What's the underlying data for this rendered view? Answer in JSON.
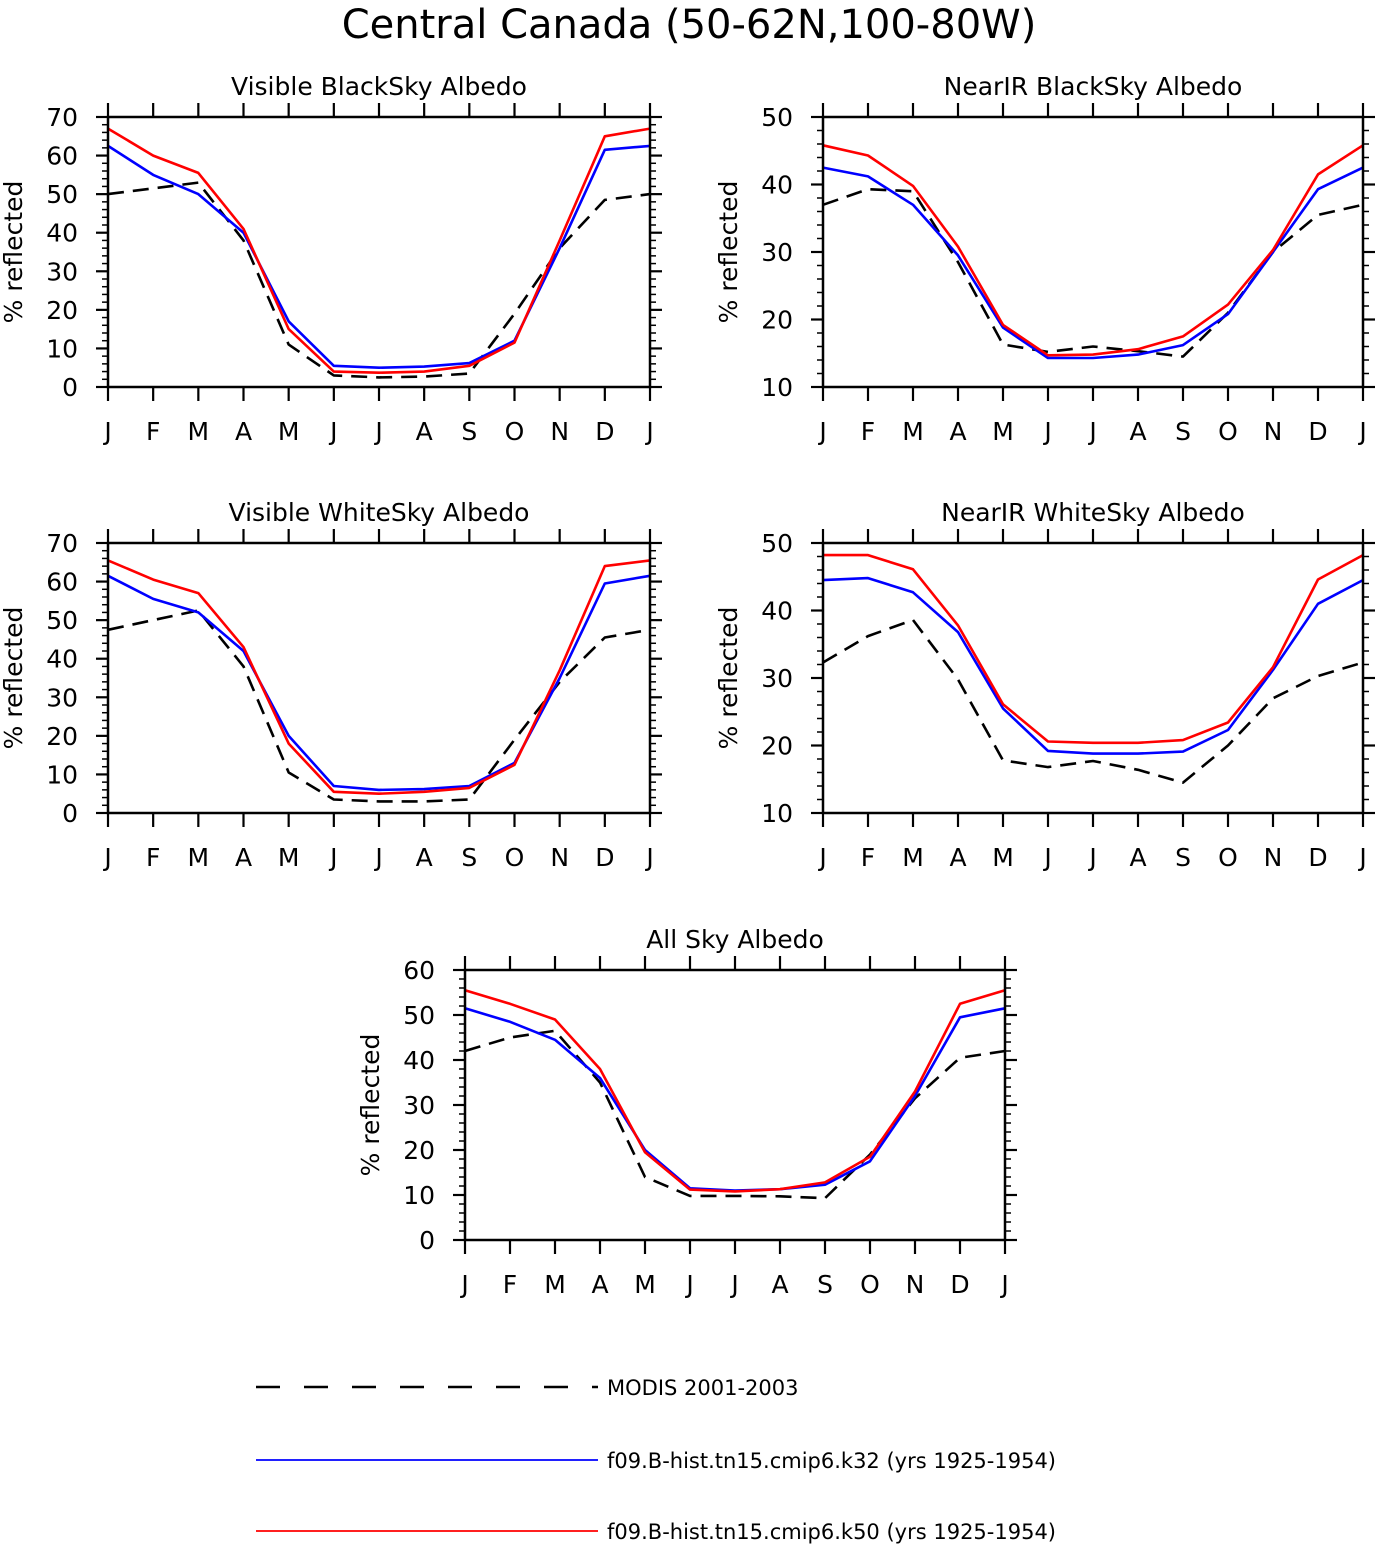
{
  "title": "Central Canada (50-62N,100-80W)",
  "ylabel": "% reflected",
  "months": [
    "J",
    "F",
    "M",
    "A",
    "M",
    "J",
    "J",
    "A",
    "S",
    "O",
    "N",
    "D",
    "J"
  ],
  "colors": {
    "modis": "#000000",
    "k32": "#0000ff",
    "k50": "#ff0000"
  },
  "legend": [
    {
      "label": "MODIS 2001-2003",
      "color": "#000000",
      "dash": true
    },
    {
      "label": "f09.B-hist.tn15.cmip6.k32 (yrs 1925-1954)",
      "color": "#0000ff",
      "dash": false
    },
    {
      "label": "f09.B-hist.tn15.cmip6.k50 (yrs 1925-1954)",
      "color": "#ff0000",
      "dash": false
    }
  ],
  "chart_data": [
    {
      "type": "line",
      "title": "Visible BlackSky Albedo",
      "ylabel": "% reflected",
      "categories": [
        "J",
        "F",
        "M",
        "A",
        "M",
        "J",
        "J",
        "A",
        "S",
        "O",
        "N",
        "D",
        "J"
      ],
      "ylim": [
        0,
        70
      ],
      "yticks": [
        0,
        10,
        20,
        30,
        40,
        50,
        60,
        70
      ],
      "series": [
        {
          "name": "MODIS 2001-2003",
          "values": [
            50,
            51.5,
            53,
            38,
            11,
            3,
            2.5,
            2.7,
            3.5,
            19,
            36,
            48.5,
            50
          ]
        },
        {
          "name": "f09.B-hist.tn15.cmip6.k32 (yrs 1925-1954)",
          "values": [
            62.5,
            55,
            50,
            40,
            17,
            5.5,
            5,
            5.3,
            6.2,
            12,
            36,
            61.5,
            62.5
          ]
        },
        {
          "name": "f09.B-hist.tn15.cmip6.k50 (yrs 1925-1954)",
          "values": [
            67,
            60,
            55.5,
            41,
            15,
            4,
            3.7,
            4,
            5.5,
            11.5,
            38,
            65,
            67
          ]
        }
      ]
    },
    {
      "type": "line",
      "title": "NearIR BlackSky Albedo",
      "ylabel": "% reflected",
      "categories": [
        "J",
        "F",
        "M",
        "A",
        "M",
        "J",
        "J",
        "A",
        "S",
        "O",
        "N",
        "D",
        "J"
      ],
      "ylim": [
        10,
        50
      ],
      "yticks": [
        10,
        20,
        30,
        40,
        50
      ],
      "series": [
        {
          "name": "MODIS 2001-2003",
          "values": [
            37,
            39.3,
            39,
            28.5,
            16.3,
            15.2,
            16,
            15.3,
            14.5,
            21,
            30,
            35.5,
            37
          ]
        },
        {
          "name": "f09.B-hist.tn15.cmip6.k32 (yrs 1925-1954)",
          "values": [
            42.5,
            41.2,
            37,
            29.5,
            18.8,
            14.3,
            14.3,
            14.8,
            16.2,
            20.8,
            30,
            39.3,
            42.5
          ]
        },
        {
          "name": "f09.B-hist.tn15.cmip6.k50 (yrs 1925-1954)",
          "values": [
            45.8,
            44.3,
            39.8,
            30.8,
            19.2,
            14.7,
            14.8,
            15.6,
            17.5,
            22.2,
            30.3,
            41.5,
            45.8
          ]
        }
      ]
    },
    {
      "type": "line",
      "title": "Visible WhiteSky Albedo",
      "ylabel": "% reflected",
      "categories": [
        "J",
        "F",
        "M",
        "A",
        "M",
        "J",
        "J",
        "A",
        "S",
        "O",
        "N",
        "D",
        "J"
      ],
      "ylim": [
        0,
        70
      ],
      "yticks": [
        0,
        10,
        20,
        30,
        40,
        50,
        60,
        70
      ],
      "series": [
        {
          "name": "MODIS 2001-2003",
          "values": [
            47.5,
            50,
            52.5,
            38,
            10.5,
            3.5,
            3,
            3,
            3.5,
            19,
            34,
            45.5,
            47.5
          ]
        },
        {
          "name": "f09.B-hist.tn15.cmip6.k32 (yrs 1925-1954)",
          "values": [
            61.5,
            55.5,
            52,
            42,
            20,
            7,
            6,
            6.2,
            7,
            13,
            35,
            59.5,
            61.5
          ]
        },
        {
          "name": "f09.B-hist.tn15.cmip6.k50 (yrs 1925-1954)",
          "values": [
            65.5,
            60.5,
            57,
            43,
            18,
            5.5,
            5,
            5.5,
            6.5,
            12.5,
            37,
            64,
            65.5
          ]
        }
      ]
    },
    {
      "type": "line",
      "title": "NearIR WhiteSky Albedo",
      "ylabel": "% reflected",
      "categories": [
        "J",
        "F",
        "M",
        "A",
        "M",
        "J",
        "J",
        "A",
        "S",
        "O",
        "N",
        "D",
        "J"
      ],
      "ylim": [
        10,
        50
      ],
      "yticks": [
        10,
        20,
        30,
        40,
        50
      ],
      "series": [
        {
          "name": "MODIS 2001-2003",
          "values": [
            32.3,
            36.2,
            38.6,
            29.8,
            17.8,
            16.8,
            17.7,
            16.4,
            14.5,
            20,
            27,
            30.3,
            32.3
          ]
        },
        {
          "name": "f09.B-hist.tn15.cmip6.k32 (yrs 1925-1954)",
          "values": [
            44.5,
            44.8,
            42.7,
            36.8,
            25.5,
            19.2,
            18.8,
            18.8,
            19.1,
            22.3,
            31.2,
            41,
            44.5
          ]
        },
        {
          "name": "f09.B-hist.tn15.cmip6.k50 (yrs 1925-1954)",
          "values": [
            48.2,
            48.2,
            46.1,
            37.8,
            26.1,
            20.6,
            20.4,
            20.4,
            20.8,
            23.4,
            31.6,
            44.6,
            48.2
          ]
        }
      ]
    },
    {
      "type": "line",
      "title": "All Sky Albedo",
      "ylabel": "% reflected",
      "categories": [
        "J",
        "F",
        "M",
        "A",
        "M",
        "J",
        "J",
        "A",
        "S",
        "O",
        "N",
        "D",
        "J"
      ],
      "ylim": [
        0,
        60
      ],
      "yticks": [
        0,
        10,
        20,
        30,
        40,
        50,
        60
      ],
      "series": [
        {
          "name": "MODIS 2001-2003",
          "values": [
            42,
            45,
            46.5,
            35,
            14,
            9.8,
            9.8,
            9.7,
            9.3,
            19,
            31.5,
            40.5,
            42
          ]
        },
        {
          "name": "f09.B-hist.tn15.cmip6.k32 (yrs 1925-1954)",
          "values": [
            51.5,
            48.5,
            44.5,
            36,
            20,
            11.5,
            11,
            11.3,
            12.3,
            17.5,
            32,
            49.5,
            51.5
          ]
        },
        {
          "name": "f09.B-hist.tn15.cmip6.k50 (yrs 1925-1954)",
          "values": [
            55.5,
            52.5,
            49,
            38,
            19.5,
            11.2,
            10.8,
            11.3,
            12.8,
            18.5,
            33,
            52.5,
            55.5
          ]
        }
      ]
    }
  ]
}
